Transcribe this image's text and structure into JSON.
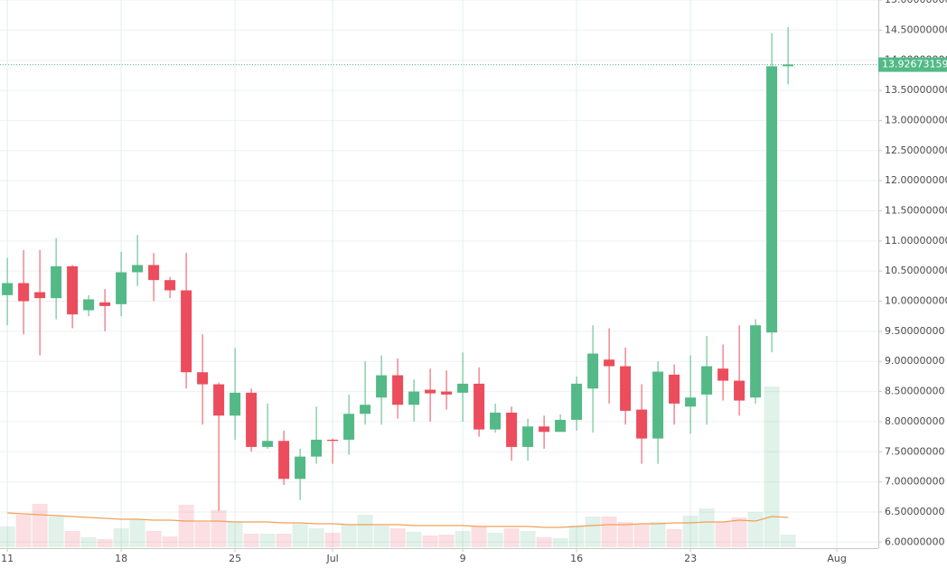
{
  "chart_data": {
    "type": "candlestick",
    "x": [
      0,
      1,
      2,
      3,
      4,
      5,
      6,
      7,
      8,
      9,
      10,
      11,
      12,
      13,
      14,
      15,
      16,
      17,
      18,
      19,
      20,
      21,
      22,
      23,
      24,
      25,
      26,
      27,
      28,
      29,
      30,
      31,
      32,
      33,
      34,
      35,
      36,
      37,
      38,
      39,
      40,
      41,
      42,
      43,
      44,
      45,
      46,
      47,
      48
    ],
    "open": [
      10.1,
      10.3,
      10.15,
      10.05,
      10.58,
      9.85,
      9.98,
      9.95,
      10.48,
      10.6,
      10.35,
      10.18,
      8.82,
      8.62,
      8.1,
      8.48,
      7.58,
      7.68,
      7.05,
      7.42,
      7.7,
      7.7,
      8.13,
      8.4,
      8.77,
      8.28,
      8.53,
      8.5,
      8.48,
      8.63,
      7.87,
      8.15,
      7.58,
      7.92,
      7.83,
      8.03,
      8.55,
      9.03,
      8.92,
      8.2,
      7.72,
      8.78,
      8.25,
      8.45,
      8.88,
      8.68,
      8.4,
      9.48,
      13.9
    ],
    "high": [
      10.72,
      10.85,
      10.85,
      11.05,
      10.6,
      10.1,
      10.2,
      10.82,
      11.1,
      10.8,
      10.4,
      10.8,
      9.45,
      8.65,
      9.22,
      8.55,
      8.3,
      7.85,
      7.55,
      8.25,
      7.72,
      8.45,
      9.0,
      9.1,
      9.05,
      8.7,
      8.88,
      8.85,
      9.15,
      8.9,
      8.3,
      8.25,
      8.05,
      8.1,
      8.12,
      8.75,
      9.6,
      9.55,
      9.23,
      8.62,
      9.0,
      8.95,
      9.1,
      9.42,
      9.28,
      9.6,
      9.7,
      14.45,
      14.55
    ],
    "low": [
      9.6,
      9.45,
      9.1,
      9.7,
      9.55,
      9.75,
      9.5,
      9.75,
      10.25,
      10.0,
      10.05,
      8.55,
      7.95,
      6.52,
      7.7,
      7.5,
      7.55,
      6.95,
      6.7,
      7.3,
      7.3,
      7.45,
      7.95,
      7.95,
      8.05,
      8.0,
      8.0,
      8.2,
      8.0,
      7.75,
      7.82,
      7.35,
      7.35,
      7.55,
      7.85,
      7.85,
      7.82,
      8.3,
      7.95,
      7.3,
      7.3,
      7.95,
      7.8,
      7.95,
      8.35,
      8.1,
      8.3,
      9.15,
      13.6
    ],
    "close": [
      10.3,
      10.0,
      10.05,
      10.58,
      9.78,
      10.03,
      9.92,
      10.48,
      10.6,
      10.35,
      10.18,
      8.82,
      8.62,
      8.1,
      8.48,
      7.58,
      7.68,
      7.05,
      7.42,
      7.7,
      7.68,
      8.13,
      8.28,
      8.77,
      8.28,
      8.5,
      8.47,
      8.45,
      8.63,
      7.87,
      8.15,
      7.58,
      7.92,
      7.83,
      8.03,
      8.63,
      9.13,
      8.92,
      8.18,
      7.72,
      8.83,
      8.3,
      8.4,
      8.92,
      8.68,
      8.35,
      9.6,
      13.9,
      13.93
    ],
    "volume": [
      23,
      36,
      48,
      34,
      18,
      11,
      9,
      21,
      31,
      18,
      12,
      47,
      28,
      41,
      28,
      15,
      15,
      15,
      26,
      21,
      16,
      25,
      36,
      24,
      21,
      17,
      13,
      14,
      18,
      23,
      16,
      21,
      18,
      11,
      10,
      24,
      34,
      34,
      28,
      26,
      28,
      20,
      35,
      43,
      28,
      33,
      39,
      178,
      14
    ],
    "volume_ma": [
      38,
      37,
      36,
      35,
      34,
      33,
      32,
      31,
      31,
      30,
      30,
      29,
      29,
      29,
      28,
      28,
      28,
      27,
      27,
      26,
      26,
      25,
      25,
      25,
      25,
      24,
      24,
      24,
      24,
      23,
      23,
      23,
      23,
      22,
      22,
      23,
      24,
      25,
      25,
      26,
      26,
      27,
      27,
      28,
      28,
      30,
      29,
      34,
      33
    ],
    "up_color": "#53b987",
    "down_color": "#eb4d5c",
    "ma_color": "#f0a05a",
    "xlim": [
      -0.45,
      53.55
    ],
    "xticks": [
      {
        "value": 0,
        "label": "11"
      },
      {
        "value": 7,
        "label": "18"
      },
      {
        "value": 14,
        "label": "25"
      },
      {
        "value": 20,
        "label": "Jul"
      },
      {
        "value": 28,
        "label": "9"
      },
      {
        "value": 35,
        "label": "16"
      },
      {
        "value": 42,
        "label": "23"
      },
      {
        "value": 51,
        "label": "Aug"
      }
    ],
    "ylim": [
      5.9,
      15
    ],
    "yticks": [
      {
        "value": 6,
        "label": "6.00000000"
      },
      {
        "value": 6.5,
        "label": "6.50000000"
      },
      {
        "value": 7,
        "label": "7.00000000"
      },
      {
        "value": 7.5,
        "label": "7.50000000"
      },
      {
        "value": 8,
        "label": "8.00000000"
      },
      {
        "value": 8.5,
        "label": "8.50000000"
      },
      {
        "value": 9,
        "label": "9.00000000"
      },
      {
        "value": 9.5,
        "label": "9.50000000"
      },
      {
        "value": 10,
        "label": "10.00000000"
      },
      {
        "value": 10.5,
        "label": "10.50000000"
      },
      {
        "value": 11,
        "label": "11.00000000"
      },
      {
        "value": 11.5,
        "label": "11.50000000"
      },
      {
        "value": 12,
        "label": "12.00000000"
      },
      {
        "value": 12.5,
        "label": "12.50000000"
      },
      {
        "value": 13,
        "label": "13.00000000"
      },
      {
        "value": 13.5,
        "label": "13.50000000"
      },
      {
        "value": 14,
        "label": "14.00000000"
      },
      {
        "value": 14.5,
        "label": "14.50000000"
      },
      {
        "value": 15,
        "label": "15.00000000"
      }
    ],
    "last_price": 13.92673159,
    "grid": true
  }
}
